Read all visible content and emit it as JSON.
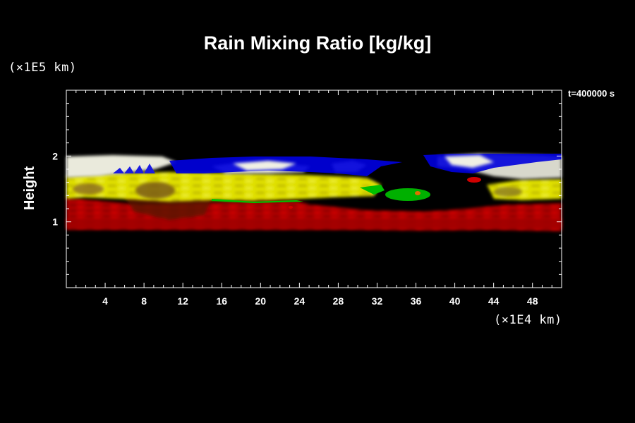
{
  "chart_data": {
    "type": "heatmap",
    "title": "Rain Mixing Ratio [kg/kg]",
    "ylabel": "Height",
    "y_unit": "(×1E5 km)",
    "x_unit": "(×1E4 km)",
    "time_label": "t=400000 s",
    "xlim": [
      0,
      51
    ],
    "ylim": [
      0,
      3
    ],
    "x_ticks": [
      4,
      8,
      12,
      16,
      20,
      24,
      28,
      32,
      36,
      40,
      44,
      48
    ],
    "y_ticks": [
      1,
      2
    ],
    "colors": {
      "background": "#000000",
      "red": "#cc0000",
      "yellow": "#e8e800",
      "white": "#f0f0e0",
      "blue": "#0000dd",
      "green": "#00b000",
      "orange": "#e07000"
    }
  }
}
